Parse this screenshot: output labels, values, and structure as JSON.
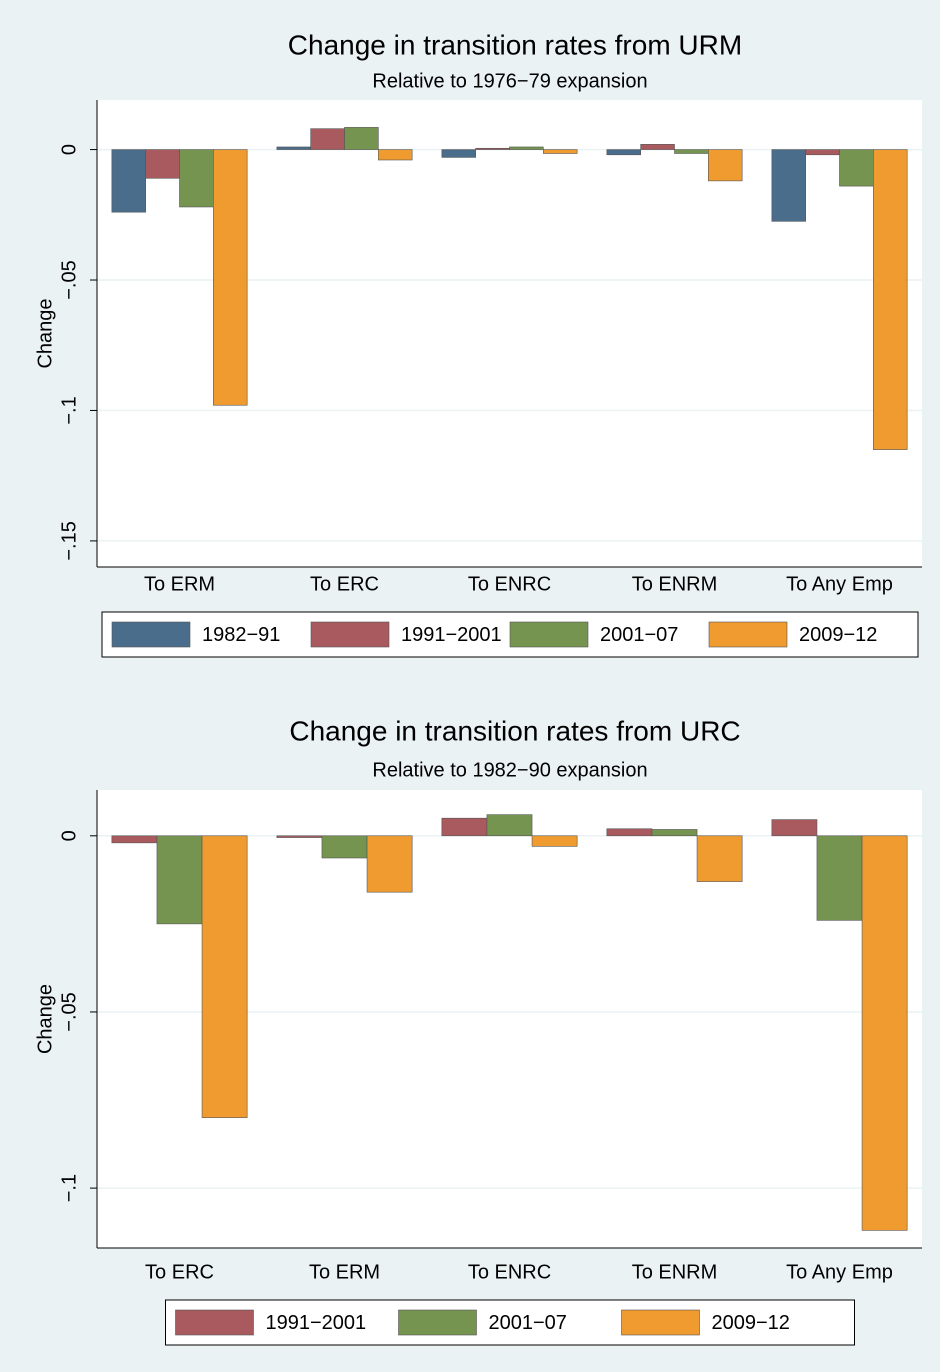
{
  "chart_data": [
    {
      "type": "bar",
      "title": "Change in transition rates from URM",
      "subtitle": "Relative to 1976−79 expansion",
      "y_label": "Change",
      "categories": [
        "To ERM",
        "To ERC",
        "To ENRC",
        "To ENRM",
        "To Any Emp"
      ],
      "series": [
        {
          "name": "1982−91",
          "color": "#4a6d8c",
          "values": [
            -0.024,
            0.001,
            -0.003,
            -0.002,
            -0.0275
          ]
        },
        {
          "name": "1991−2001",
          "color": "#a85a5e",
          "values": [
            -0.011,
            0.008,
            0.0005,
            0.002,
            -0.002
          ]
        },
        {
          "name": "2001−07",
          "color": "#75944f",
          "values": [
            -0.022,
            0.0085,
            0.001,
            -0.0015,
            -0.014
          ]
        },
        {
          "name": "2009−12",
          "color": "#ef9b2f",
          "values": [
            -0.098,
            -0.004,
            -0.0015,
            -0.012,
            -0.115
          ]
        }
      ],
      "ylim": [
        -0.16,
        0.019
      ],
      "yticks": [
        0,
        {
          "value": -0.05,
          "label": "−.05"
        },
        {
          "value": -0.1,
          "label": "−.1"
        },
        {
          "value": -0.15,
          "label": "−.15"
        }
      ],
      "grid": true,
      "legend": "bottom"
    },
    {
      "type": "bar",
      "title": "Change in transition rates from URC",
      "subtitle": "Relative to 1982−90 expansion",
      "y_label": "Change",
      "categories": [
        "To ERC",
        "To ERM",
        "To ENRC",
        "To ENRM",
        "To Any Emp"
      ],
      "series": [
        {
          "name": "1991−2001",
          "color": "#a85a5e",
          "values": [
            -0.002,
            -0.0005,
            0.005,
            0.002,
            0.0046
          ]
        },
        {
          "name": "2001−07",
          "color": "#75944f",
          "values": [
            -0.025,
            -0.0063,
            0.006,
            0.0018,
            -0.024
          ]
        },
        {
          "name": "2009−12",
          "color": "#ef9b2f",
          "values": [
            -0.08,
            -0.016,
            -0.003,
            -0.013,
            -0.112
          ]
        }
      ],
      "ylim": [
        -0.117,
        0.013
      ],
      "yticks": [
        0,
        {
          "value": -0.05,
          "label": "−.05"
        },
        {
          "value": -0.1,
          "label": "−.1"
        }
      ],
      "grid": true,
      "legend": "bottom"
    }
  ]
}
